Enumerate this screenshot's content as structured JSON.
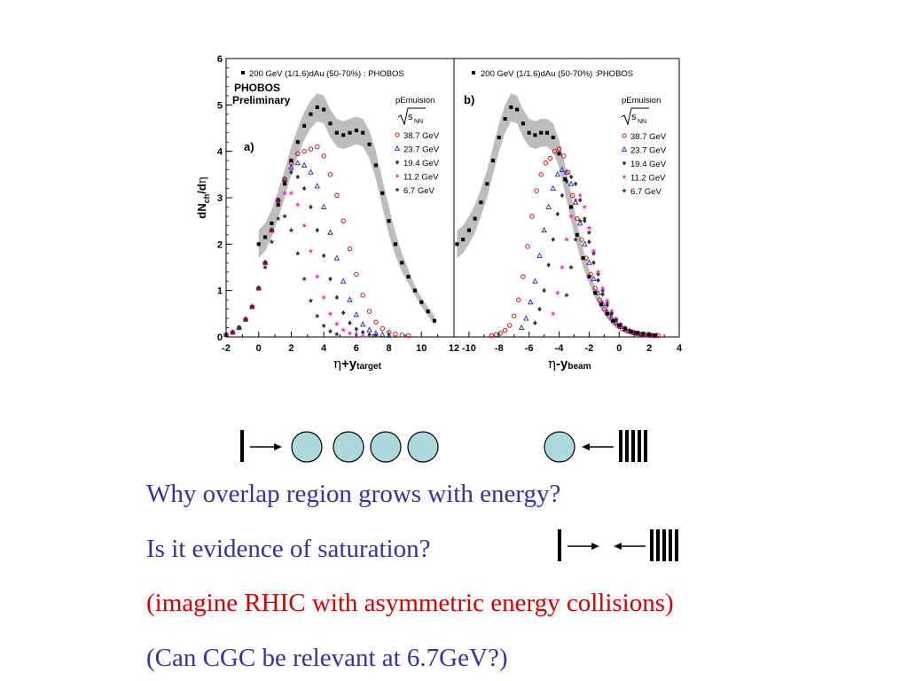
{
  "slide": {
    "lines": [
      {
        "text": "Why overlap region grows with energy?",
        "color": "#333399"
      },
      {
        "text": "Is it evidence of saturation?",
        "color": "#333399"
      },
      {
        "text": "(imagine RHIC with asymmetric energy collisions)",
        "color": "#cc0000"
      },
      {
        "text": "(Can CGC be relevant at 6.7GeV?)",
        "color": "#333399"
      }
    ]
  },
  "chart_data": [
    {
      "type": "scatter",
      "panel_label": "a)",
      "header": "200 GeV (1/1.6)dAu (50-70%) : PHOBOS",
      "annotation": [
        "PHOBOS",
        "Preliminary"
      ],
      "legend_title": "pEmulsion",
      "legend_subtitle": "√s_NN",
      "legend_placement": "right",
      "xlabel": "η+y_target",
      "ylabel": "dN_ch/dη",
      "xlim": [
        -2,
        12
      ],
      "ylim": [
        0,
        6
      ],
      "xticks": [
        -2,
        0,
        2,
        4,
        6,
        8,
        10,
        12
      ],
      "yticks": [
        0,
        1,
        2,
        3,
        4,
        5,
        6
      ],
      "band_color": "#bdbdbd",
      "series": [
        {
          "name": "200 GeV",
          "marker": "square",
          "color": "#000000",
          "x": [
            0,
            0.4,
            0.8,
            1.2,
            1.6,
            2.0,
            2.4,
            2.8,
            3.2,
            3.6,
            4.0,
            4.4,
            4.8,
            5.2,
            5.6,
            6.0,
            6.4,
            6.8,
            7.2,
            7.6,
            8.0,
            8.4,
            8.8,
            9.2,
            9.6,
            10.0,
            10.4,
            10.8
          ],
          "y": [
            2.0,
            2.15,
            2.45,
            2.85,
            3.3,
            3.8,
            4.2,
            4.55,
            4.8,
            4.95,
            4.9,
            4.6,
            4.4,
            4.35,
            4.4,
            4.45,
            4.4,
            4.15,
            3.7,
            3.1,
            2.5,
            2.0,
            1.6,
            1.3,
            1.0,
            0.75,
            0.55,
            0.35
          ],
          "band": [
            0.3,
            0.3,
            0.3,
            0.3,
            0.3,
            0.3,
            0.3,
            0.3,
            0.3,
            0.3,
            0.3,
            0.3,
            0.3,
            0.3,
            0.3,
            0.3,
            0.3,
            0.3,
            0.3,
            0.3,
            0.3,
            0.25,
            0.2,
            0.15,
            0.1,
            0.1,
            0.1,
            0.1
          ]
        },
        {
          "name": "38.7 GeV",
          "marker": "circle",
          "color": "#cc0000",
          "x": [
            -2.0,
            -1.6,
            -1.2,
            -0.8,
            -0.4,
            0.0,
            0.4,
            0.8,
            1.2,
            1.6,
            2.0,
            2.4,
            2.8,
            3.2,
            3.6,
            4.0,
            4.4,
            4.8,
            5.2,
            5.6,
            6.0,
            6.4,
            6.8,
            7.2,
            7.6,
            8.0,
            8.4,
            8.8,
            9.2
          ],
          "y": [
            0.05,
            0.1,
            0.2,
            0.38,
            0.65,
            1.05,
            1.6,
            2.3,
            2.95,
            3.4,
            3.75,
            3.95,
            4.0,
            4.05,
            4.1,
            3.9,
            3.5,
            3.05,
            2.5,
            1.9,
            1.35,
            0.9,
            0.55,
            0.32,
            0.18,
            0.1,
            0.06,
            0.04,
            0.03
          ]
        },
        {
          "name": "23.7 GeV",
          "marker": "triangle",
          "color": "#2222cc",
          "x": [
            -2.0,
            -1.6,
            -1.2,
            -0.8,
            -0.4,
            0.0,
            0.4,
            0.8,
            1.2,
            1.6,
            2.0,
            2.4,
            2.8,
            3.2,
            3.6,
            4.0,
            4.4,
            4.8,
            5.2,
            5.6,
            6.0,
            6.4,
            6.8,
            7.2,
            7.6,
            8.0
          ],
          "y": [
            0.05,
            0.1,
            0.2,
            0.38,
            0.65,
            1.05,
            1.6,
            2.3,
            2.95,
            3.4,
            3.65,
            3.75,
            3.7,
            3.55,
            3.25,
            2.8,
            2.25,
            1.7,
            1.2,
            0.8,
            0.48,
            0.27,
            0.15,
            0.08,
            0.05,
            0.03
          ]
        },
        {
          "name": "19.4 GeV",
          "marker": "diamond",
          "color": "#333333",
          "x": [
            -2.0,
            -1.6,
            -1.2,
            -0.8,
            -0.4,
            0.0,
            0.4,
            0.8,
            1.2,
            1.6,
            2.0,
            2.4,
            2.8,
            3.2,
            3.6,
            4.0,
            4.4,
            4.8,
            5.2,
            5.6,
            6.0,
            6.4,
            6.8,
            7.2
          ],
          "y": [
            0.05,
            0.1,
            0.2,
            0.38,
            0.65,
            1.05,
            1.6,
            2.3,
            2.95,
            3.35,
            3.55,
            3.45,
            3.2,
            2.8,
            2.3,
            1.75,
            1.25,
            0.85,
            0.52,
            0.3,
            0.17,
            0.1,
            0.05,
            0.03
          ]
        },
        {
          "name": "11.2 GeV",
          "marker": "star",
          "color": "#ff33cc",
          "x": [
            -2.0,
            -1.6,
            -1.2,
            -0.8,
            -0.4,
            0.0,
            0.4,
            0.8,
            1.2,
            1.6,
            2.0,
            2.4,
            2.8,
            3.2,
            3.6,
            4.0,
            4.4,
            4.8,
            5.2,
            5.6,
            6.0,
            6.4
          ],
          "y": [
            0.05,
            0.1,
            0.2,
            0.38,
            0.65,
            1.05,
            1.6,
            2.3,
            2.85,
            3.1,
            3.1,
            2.85,
            2.4,
            1.85,
            1.3,
            0.85,
            0.5,
            0.28,
            0.15,
            0.08,
            0.04,
            0.02
          ]
        },
        {
          "name": "6.7 GeV",
          "marker": "star",
          "color": "#333333",
          "x": [
            -2.0,
            -1.6,
            -1.2,
            -0.8,
            -0.4,
            0.0,
            0.4,
            0.8,
            1.2,
            1.6,
            2.0,
            2.4,
            2.8,
            3.2,
            3.6,
            4.0,
            4.4,
            4.8
          ],
          "y": [
            0.05,
            0.1,
            0.2,
            0.38,
            0.65,
            1.05,
            1.5,
            2.05,
            2.55,
            2.6,
            2.3,
            1.8,
            1.25,
            0.78,
            0.45,
            0.24,
            0.12,
            0.06
          ]
        }
      ]
    },
    {
      "type": "scatter",
      "panel_label": "b)",
      "header": "200 GeV (1/1.6)dAu (50-70%) :PHOBOS",
      "legend_title": "pEmulsion",
      "legend_subtitle": "√s_NN",
      "legend_placement": "right",
      "xlabel": "η-y_beam",
      "xlim": [
        -11,
        4
      ],
      "ylim": [
        0,
        6
      ],
      "xticks": [
        -10,
        -8,
        -6,
        -4,
        -2,
        0,
        2,
        4
      ],
      "band_color": "#bdbdbd",
      "series": [
        {
          "name": "200 GeV",
          "marker": "square",
          "color": "#000000",
          "x": [
            -10.8,
            -10.4,
            -10.0,
            -9.6,
            -9.2,
            -8.8,
            -8.4,
            -8.0,
            -7.6,
            -7.2,
            -6.8,
            -6.4,
            -6.0,
            -5.6,
            -5.2,
            -4.8,
            -4.4,
            -4.0,
            -3.6,
            -3.2,
            -2.8,
            -2.4,
            -2.0,
            -1.6,
            -1.2,
            -0.8,
            -0.4,
            0.0,
            0.4,
            0.8,
            1.2,
            1.6,
            2.0,
            2.4
          ],
          "y": [
            2.0,
            2.1,
            2.3,
            2.55,
            2.9,
            3.3,
            3.8,
            4.3,
            4.7,
            4.95,
            4.9,
            4.6,
            4.4,
            4.35,
            4.4,
            4.4,
            4.3,
            3.95,
            3.4,
            2.8,
            2.2,
            1.7,
            1.3,
            0.95,
            0.7,
            0.5,
            0.35,
            0.25,
            0.18,
            0.12,
            0.09,
            0.07,
            0.05,
            0.04
          ],
          "band": [
            0.3,
            0.3,
            0.3,
            0.3,
            0.3,
            0.3,
            0.3,
            0.3,
            0.3,
            0.3,
            0.3,
            0.3,
            0.3,
            0.3,
            0.3,
            0.3,
            0.3,
            0.3,
            0.3,
            0.3,
            0.25,
            0.2,
            0.15,
            0.12,
            0.1,
            0.08,
            0.06,
            0.05,
            0.04,
            0.03,
            0.03,
            0.02,
            0.02,
            0.02
          ]
        },
        {
          "name": "38.7 GeV",
          "marker": "circle",
          "color": "#cc0000",
          "x": [
            -8.5,
            -8.2,
            -7.9,
            -7.6,
            -7.3,
            -7.0,
            -6.7,
            -6.4,
            -6.1,
            -5.8,
            -5.5,
            -5.2,
            -4.9,
            -4.6,
            -4.3,
            -4.0,
            -3.7,
            -3.4,
            -3.1,
            -2.8,
            -2.5,
            -2.2,
            -1.9,
            -1.6,
            -1.3,
            -1.0,
            -0.7,
            -0.4,
            -0.1,
            0.2,
            0.5,
            0.8,
            1.1,
            1.4,
            1.7,
            2.0,
            2.3,
            2.6
          ],
          "y": [
            0.03,
            0.05,
            0.08,
            0.14,
            0.25,
            0.45,
            0.8,
            1.3,
            1.95,
            2.6,
            3.15,
            3.5,
            3.75,
            3.85,
            4.0,
            4.05,
            3.9,
            3.55,
            3.05,
            2.55,
            2.1,
            1.7,
            1.35,
            1.05,
            0.8,
            0.6,
            0.45,
            0.33,
            0.24,
            0.18,
            0.13,
            0.1,
            0.08,
            0.06,
            0.05,
            0.04,
            0.03,
            0.03
          ]
        },
        {
          "name": "23.7 GeV",
          "marker": "triangle",
          "color": "#2222cc",
          "x": [
            -6.5,
            -6.2,
            -5.9,
            -5.6,
            -5.3,
            -5.0,
            -4.7,
            -4.4,
            -4.1,
            -3.8,
            -3.5,
            -3.2,
            -2.9,
            -2.6,
            -2.3,
            -2.0,
            -1.7,
            -1.4,
            -1.1,
            -0.8,
            -0.5,
            -0.2,
            0.1,
            0.4,
            0.7,
            1.0,
            1.3,
            1.6,
            1.9,
            2.2,
            2.5
          ],
          "y": [
            0.2,
            0.4,
            0.75,
            1.2,
            1.75,
            2.3,
            2.8,
            3.2,
            3.5,
            3.6,
            3.55,
            3.3,
            2.9,
            2.45,
            2.0,
            1.6,
            1.25,
            0.95,
            0.72,
            0.54,
            0.4,
            0.3,
            0.22,
            0.16,
            0.12,
            0.09,
            0.07,
            0.05,
            0.04,
            0.03,
            0.03
          ]
        },
        {
          "name": "19.4 GeV",
          "marker": "diamond",
          "color": "#333333",
          "x": [
            -5.6,
            -5.3,
            -5.0,
            -4.7,
            -4.4,
            -4.1,
            -3.8,
            -3.5,
            -3.2,
            -2.9,
            -2.6,
            -2.3,
            -2.0,
            -1.7,
            -1.4,
            -1.1,
            -0.8,
            -0.5,
            -0.2,
            0.1,
            0.4,
            0.7,
            1.0,
            1.3,
            1.6,
            1.9,
            2.2
          ],
          "y": [
            0.3,
            0.6,
            1.0,
            1.55,
            2.1,
            2.65,
            3.05,
            3.35,
            3.45,
            3.3,
            2.95,
            2.5,
            2.05,
            1.6,
            1.22,
            0.92,
            0.68,
            0.5,
            0.36,
            0.26,
            0.19,
            0.14,
            0.1,
            0.08,
            0.06,
            0.05,
            0.04
          ]
        },
        {
          "name": "11.2 GeV",
          "marker": "star",
          "color": "#ff33cc",
          "x": [
            -4.4,
            -4.1,
            -3.8,
            -3.5,
            -3.2,
            -2.9,
            -2.6,
            -2.3,
            -2.0,
            -1.7,
            -1.4,
            -1.1,
            -0.8,
            -0.5,
            -0.2,
            0.1,
            0.4,
            0.7,
            1.0,
            1.3,
            1.6,
            1.9,
            2.2
          ],
          "y": [
            0.5,
            0.95,
            1.5,
            2.1,
            2.6,
            2.95,
            3.05,
            2.8,
            2.35,
            1.85,
            1.4,
            1.05,
            0.78,
            0.56,
            0.4,
            0.28,
            0.2,
            0.14,
            0.1,
            0.07,
            0.05,
            0.04,
            0.03
          ]
        },
        {
          "name": "6.7 GeV",
          "marker": "star",
          "color": "#333333",
          "x": [
            -3.5,
            -3.2,
            -2.9,
            -2.6,
            -2.3,
            -2.0,
            -1.7,
            -1.4,
            -1.1,
            -0.8,
            -0.5,
            -0.2,
            0.1,
            0.4,
            0.7,
            1.0,
            1.3,
            1.6,
            1.9,
            2.2
          ],
          "y": [
            0.9,
            1.5,
            2.1,
            2.5,
            2.55,
            2.25,
            1.8,
            1.35,
            1.0,
            0.72,
            0.52,
            0.37,
            0.26,
            0.18,
            0.13,
            0.09,
            0.07,
            0.05,
            0.04,
            0.03
          ]
        }
      ]
    }
  ]
}
